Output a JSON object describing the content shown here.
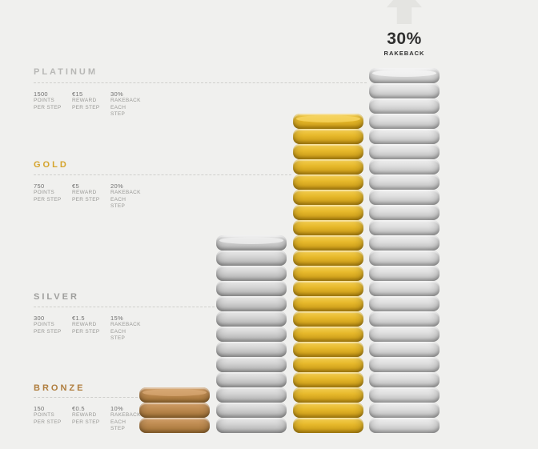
{
  "background_color": "#f0f0ee",
  "chart_data": {
    "type": "bar",
    "title": "",
    "categories": [
      "BRONZE",
      "SILVER",
      "GOLD",
      "PLATINUM"
    ],
    "series": [
      {
        "name": "Points per step",
        "values": [
          150,
          300,
          750,
          1500
        ]
      },
      {
        "name": "Reward per step",
        "values": [
          "€0.5",
          "€1.5",
          "€5",
          "€15"
        ]
      },
      {
        "name": "Rakeback each step",
        "values": [
          "10%",
          "15%",
          "20%",
          "30%"
        ]
      }
    ],
    "coin_stacks": [
      {
        "tier": "bronze",
        "coins": 3
      },
      {
        "tier": "silver",
        "coins": 13
      },
      {
        "tier": "gold",
        "coins": 21
      },
      {
        "tier": "platinum",
        "coins": 24
      }
    ],
    "legend_position": "left",
    "grid": false
  },
  "callout": {
    "value": "30%",
    "label": "RAKEBACK",
    "arrow_icon": "up-arrow"
  },
  "tiers": [
    {
      "name": "PLATINUM",
      "color": "#b7b7b5",
      "stats": [
        {
          "value": "1500",
          "line1": "POINTS",
          "line2": "PER STEP"
        },
        {
          "value": "€15",
          "line1": "REWARD",
          "line2": "PER STEP"
        },
        {
          "value": "30%",
          "line1": "RAKEBACK",
          "line2": "EACH STEP"
        }
      ]
    },
    {
      "name": "GOLD",
      "color": "#d5a42c",
      "stats": [
        {
          "value": "750",
          "line1": "POINTS",
          "line2": "PER STEP"
        },
        {
          "value": "€5",
          "line1": "REWARD",
          "line2": "PER STEP"
        },
        {
          "value": "20%",
          "line1": "RAKEBACK",
          "line2": "EACH STEP"
        }
      ]
    },
    {
      "name": "SILVER",
      "color": "#9e9e9c",
      "stats": [
        {
          "value": "300",
          "line1": "POINTS",
          "line2": "PER STEP"
        },
        {
          "value": "€1.5",
          "line1": "REWARD",
          "line2": "PER STEP"
        },
        {
          "value": "15%",
          "line1": "RAKEBACK",
          "line2": "EACH STEP"
        }
      ]
    },
    {
      "name": "BRONZE",
      "color": "#b07e3e",
      "stats": [
        {
          "value": "150",
          "line1": "POINTS",
          "line2": "PER STEP"
        },
        {
          "value": "€0.5",
          "line1": "REWARD",
          "line2": "PER STEP"
        },
        {
          "value": "10%",
          "line1": "RAKEBACK",
          "line2": "EACH STEP"
        }
      ]
    }
  ],
  "coin_colors": {
    "bronze": {
      "light": "#d2a06a",
      "mid": "#bd8a50",
      "dark": "#9c6e33",
      "face": "#d8aa76"
    },
    "silver": {
      "light": "#eaeaea",
      "mid": "#d2d2d2",
      "dark": "#a9a9a9",
      "face": "#eeeeee"
    },
    "gold": {
      "light": "#f5d055",
      "mid": "#e6b82a",
      "dark": "#c09112",
      "face": "#f6d564"
    },
    "platinum": {
      "light": "#f1f1f1",
      "mid": "#dddddd",
      "dark": "#b7b7b7",
      "face": "#f4f4f4"
    }
  }
}
